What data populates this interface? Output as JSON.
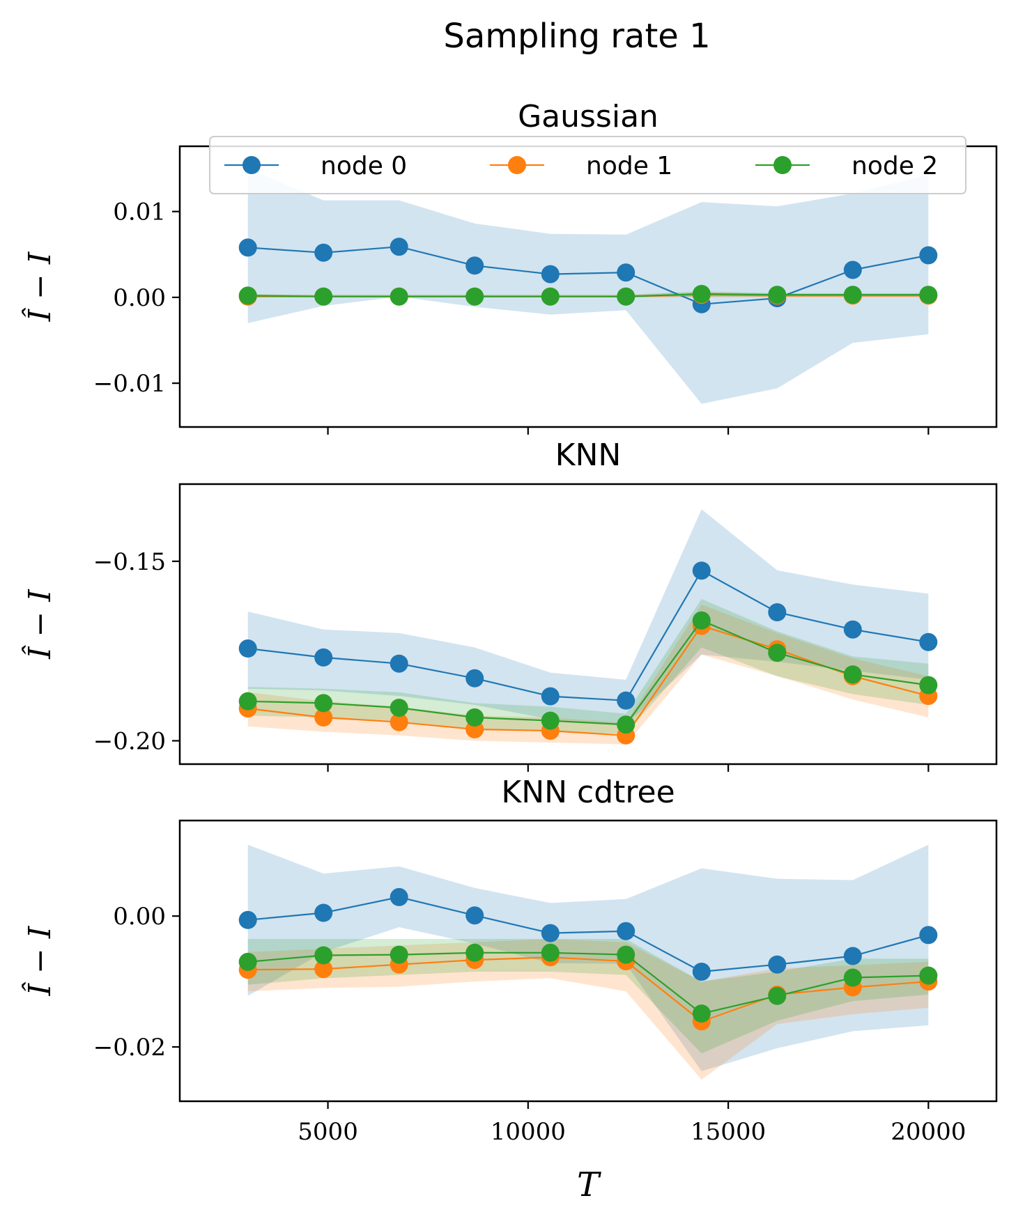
{
  "figure": {
    "suptitle": "Sampling rate 1",
    "colors": {
      "node0": "#1f77b4",
      "node1": "#ff7f0e",
      "node2": "#2ca02c"
    },
    "legend": [
      "node 0",
      "node 1",
      "node 2"
    ],
    "legend_placement": "upper-center of first panel"
  },
  "chart_data": [
    {
      "type": "line",
      "title": "Gaussian",
      "xlabel": "",
      "ylabel": "Î − I",
      "xlim": [
        1300,
        21700
      ],
      "ylim": [
        -0.0151,
        0.0176
      ],
      "xticks": [
        5000,
        10000,
        15000,
        20000
      ],
      "xtick_labels": [],
      "yticks": [
        0.01,
        0.0,
        -0.01
      ],
      "ytick_labels": [
        "0.01",
        "0.00",
        "−0.01"
      ],
      "x": [
        3000,
        4889,
        6778,
        8667,
        10556,
        12444,
        14333,
        16222,
        18111,
        20000
      ],
      "series": [
        {
          "name": "node 0",
          "values": [
            0.0058,
            0.0052,
            0.0059,
            0.0037,
            0.0027,
            0.0029,
            -0.0008,
            -0.0001,
            0.0032,
            0.0049
          ],
          "lower": [
            -0.003,
            -0.001,
            0.0001,
            -0.0011,
            -0.002,
            -0.0015,
            -0.0124,
            -0.0106,
            -0.0053,
            -0.0043
          ],
          "upper": [
            0.015,
            0.0113,
            0.0113,
            0.0086,
            0.0074,
            0.0073,
            0.0111,
            0.0106,
            0.0121,
            0.0143
          ]
        },
        {
          "name": "node 1",
          "values": [
            0.0001,
            0.0001,
            0.0001,
            0.0001,
            0.0001,
            0.0001,
            0.0003,
            0.0002,
            0.0002,
            0.0002
          ],
          "lower": [
            0.0,
            0.0,
            0.0,
            0.0,
            0.0,
            0.0,
            0.0,
            0.0,
            0.0,
            0.0
          ],
          "upper": [
            0.0003,
            0.0003,
            0.0003,
            0.0003,
            0.0003,
            0.0003,
            0.0006,
            0.0004,
            0.0004,
            0.0004
          ]
        },
        {
          "name": "node 2",
          "values": [
            0.0002,
            0.0001,
            0.0001,
            0.0001,
            0.0001,
            0.0001,
            0.0004,
            0.0003,
            0.0003,
            0.0003
          ],
          "lower": [
            0.0,
            0.0,
            0.0,
            0.0,
            0.0,
            0.0,
            0.0001,
            0.0001,
            0.0001,
            0.0001
          ],
          "upper": [
            0.0004,
            0.0003,
            0.0003,
            0.0003,
            0.0003,
            0.0003,
            0.0007,
            0.0005,
            0.0005,
            0.0005
          ]
        }
      ]
    },
    {
      "type": "line",
      "title": "KNN",
      "xlabel": "",
      "ylabel": "Î − I",
      "xlim": [
        1300,
        21700
      ],
      "ylim": [
        -0.2065,
        -0.1285
      ],
      "xticks": [
        5000,
        10000,
        15000,
        20000
      ],
      "xtick_labels": [],
      "yticks": [
        -0.15,
        -0.2
      ],
      "ytick_labels": [
        "−0.15",
        "−0.20"
      ],
      "x": [
        3000,
        4889,
        6778,
        8667,
        10556,
        12444,
        14333,
        16222,
        18111,
        20000
      ],
      "series": [
        {
          "name": "node 0",
          "values": [
            -0.1743,
            -0.1768,
            -0.1785,
            -0.1826,
            -0.1876,
            -0.1888,
            -0.1526,
            -0.1642,
            -0.169,
            -0.1725
          ],
          "lower": [
            -0.1855,
            -0.186,
            -0.1875,
            -0.19,
            -0.194,
            -0.1955,
            -0.176,
            -0.178,
            -0.1805,
            -0.183
          ],
          "upper": [
            -0.164,
            -0.169,
            -0.17,
            -0.174,
            -0.181,
            -0.183,
            -0.1355,
            -0.1525,
            -0.1565,
            -0.159
          ]
        },
        {
          "name": "node 1",
          "values": [
            -0.191,
            -0.1935,
            -0.1948,
            -0.1968,
            -0.1972,
            -0.1985,
            -0.168,
            -0.1745,
            -0.182,
            -0.1875
          ],
          "lower": [
            -0.196,
            -0.1975,
            -0.1985,
            -0.2,
            -0.2005,
            -0.201,
            -0.176,
            -0.182,
            -0.1885,
            -0.1935
          ],
          "upper": [
            -0.1865,
            -0.189,
            -0.1905,
            -0.193,
            -0.1935,
            -0.195,
            -0.162,
            -0.17,
            -0.177,
            -0.182
          ]
        },
        {
          "name": "node 2",
          "values": [
            -0.189,
            -0.1895,
            -0.1908,
            -0.1935,
            -0.1944,
            -0.1955,
            -0.1665,
            -0.1755,
            -0.1815,
            -0.1845
          ],
          "lower": [
            -0.193,
            -0.1935,
            -0.1945,
            -0.1965,
            -0.1975,
            -0.198,
            -0.174,
            -0.182,
            -0.187,
            -0.19
          ],
          "upper": [
            -0.185,
            -0.1855,
            -0.1865,
            -0.1895,
            -0.1905,
            -0.1925,
            -0.1605,
            -0.1695,
            -0.1765,
            -0.1785
          ]
        }
      ]
    },
    {
      "type": "line",
      "title": "KNN cdtree",
      "xlabel": "T",
      "ylabel": "Î − I",
      "xlim": [
        1300,
        21700
      ],
      "ylim": [
        -0.0283,
        0.0146
      ],
      "xticks": [
        5000,
        10000,
        15000,
        20000
      ],
      "xtick_labels": [
        "5000",
        "10000",
        "15000",
        "20000"
      ],
      "yticks": [
        0.0,
        -0.02
      ],
      "ytick_labels": [
        "0.00",
        "−0.02"
      ],
      "x": [
        3000,
        4889,
        6778,
        8667,
        10556,
        12444,
        14333,
        16222,
        18111,
        20000
      ],
      "series": [
        {
          "name": "node 0",
          "values": [
            -0.0006,
            0.0005,
            0.0029,
            0.0001,
            -0.0026,
            -0.0023,
            -0.0085,
            -0.0074,
            -0.0061,
            -0.0029
          ],
          "lower": [
            -0.0122,
            -0.0055,
            -0.0017,
            -0.0042,
            -0.0072,
            -0.0073,
            -0.0237,
            -0.0202,
            -0.0176,
            -0.0167
          ],
          "upper": [
            0.0109,
            0.0065,
            0.0076,
            0.0043,
            0.002,
            0.0026,
            0.0073,
            0.0057,
            0.0055,
            0.0109
          ]
        },
        {
          "name": "node 1",
          "values": [
            -0.0082,
            -0.0081,
            -0.0074,
            -0.0067,
            -0.0063,
            -0.0069,
            -0.0161,
            -0.012,
            -0.0109,
            -0.01
          ],
          "lower": [
            -0.0115,
            -0.011,
            -0.0108,
            -0.01,
            -0.0095,
            -0.0115,
            -0.025,
            -0.0165,
            -0.015,
            -0.014
          ],
          "upper": [
            -0.0055,
            -0.005,
            -0.0045,
            -0.004,
            -0.0035,
            -0.004,
            -0.01,
            -0.008,
            -0.0075,
            -0.007
          ]
        },
        {
          "name": "node 2",
          "values": [
            -0.007,
            -0.006,
            -0.0059,
            -0.0056,
            -0.0056,
            -0.0059,
            -0.0149,
            -0.0122,
            -0.0094,
            -0.0091
          ],
          "lower": [
            -0.0105,
            -0.0095,
            -0.009,
            -0.0085,
            -0.0085,
            -0.009,
            -0.021,
            -0.016,
            -0.013,
            -0.012
          ],
          "upper": [
            -0.0035,
            -0.0035,
            -0.0035,
            -0.0035,
            -0.0035,
            -0.0035,
            -0.01,
            -0.0085,
            -0.0065,
            -0.0065
          ]
        }
      ]
    }
  ]
}
